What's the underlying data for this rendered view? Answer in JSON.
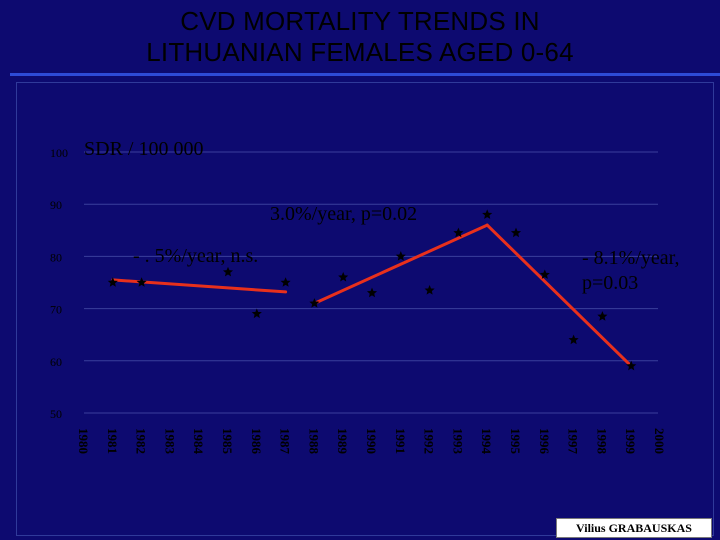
{
  "title_line1": "CVD MORTALITY  TRENDS IN",
  "title_line2": "LITHUANIAN FEMALES AGED 0-64",
  "credit": "Vilius GRABAUSKAS",
  "colors": {
    "background": "#0d0a70",
    "title_text": "#000000",
    "title_rule": "#2e4bd8",
    "trend_line": "#e8301c",
    "marker": "#000000",
    "grid": "#3a3f9c",
    "text": "#000000"
  },
  "chart_data": {
    "type": "scatter",
    "ylabel": "SDR / 100 000",
    "ylim": [
      50,
      100
    ],
    "yticks": [
      50,
      60,
      70,
      80,
      90,
      100
    ],
    "categories": [
      "1980",
      "1981",
      "1982",
      "1983",
      "1984",
      "1985",
      "1986",
      "1987",
      "1988",
      "1989",
      "1990",
      "1991",
      "1992",
      "1993",
      "1994",
      "1995",
      "1996",
      "1997",
      "1998",
      "1999",
      "2000"
    ],
    "series": [
      {
        "marker": "star",
        "values": [
          null,
          75,
          75,
          null,
          null,
          77,
          69,
          75,
          71,
          76,
          73,
          80,
          73.5,
          84.5,
          88,
          84.5,
          76.5,
          64,
          68.5,
          59,
          null
        ]
      }
    ],
    "trend_lines": [
      {
        "from": [
          "1981",
          75.5
        ],
        "to": [
          "1987",
          73.2
        ],
        "label": "- . 5%/year, n.s."
      },
      {
        "from": [
          "1988",
          71.0
        ],
        "to": [
          "1994",
          86.0
        ],
        "label": "3.0%/year, p=0.02"
      },
      {
        "from": [
          "1994",
          86.0
        ],
        "to": [
          "1999",
          59.0
        ],
        "label": "- 8.1%/year, p=0.03"
      }
    ],
    "grid": {
      "horizontal": true,
      "vertical": false
    }
  }
}
